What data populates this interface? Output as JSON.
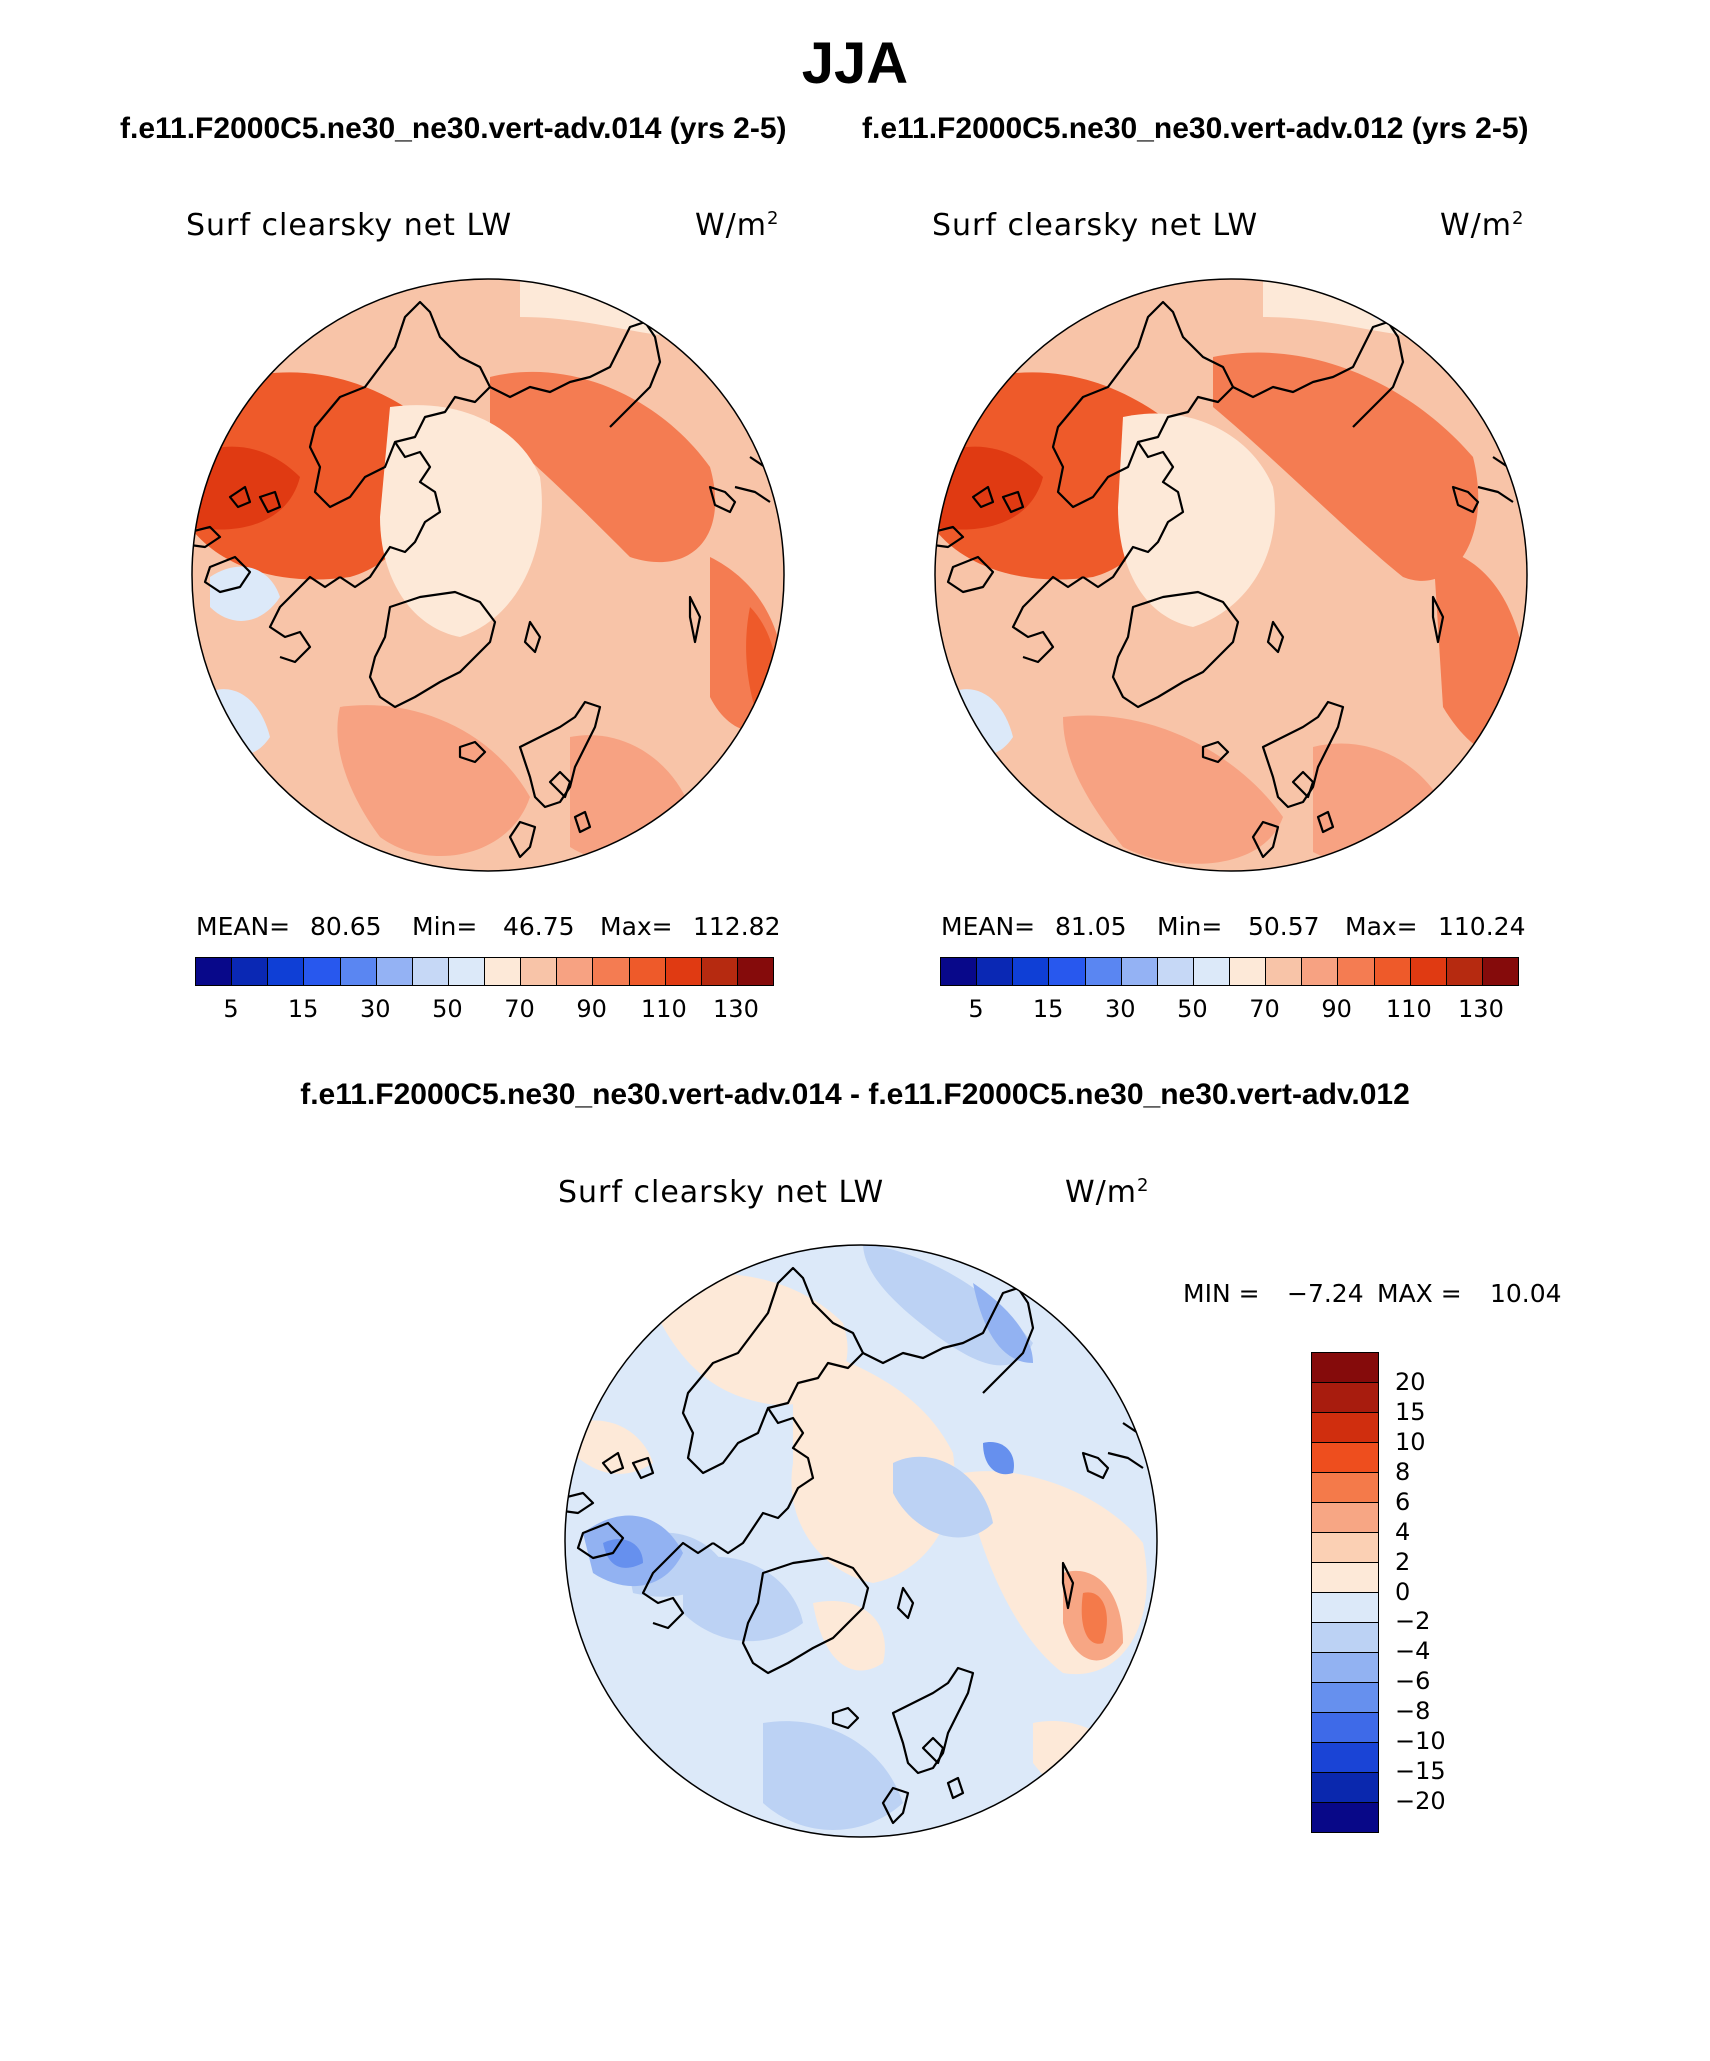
{
  "title": "JJA",
  "case_titles": {
    "left": "f.e11.F2000C5.ne30_ne30.vert-adv.014 (yrs 2-5)",
    "right": "f.e11.F2000C5.ne30_ne30.vert-adv.012 (yrs 2-5)",
    "diff": "f.e11.F2000C5.ne30_ne30.vert-adv.014 - f.e11.F2000C5.ne30_ne30.vert-adv.012"
  },
  "panels": {
    "left": {
      "variable": "Surf clearsky net LW",
      "units": "W/m",
      "units_sup": "2",
      "mean_label": "MEAN=",
      "mean": "80.65",
      "min_label": "Min=",
      "min": "46.75",
      "max_label": "Max=",
      "max": "112.82"
    },
    "right": {
      "variable": "Surf clearsky net LW",
      "units": "W/m",
      "units_sup": "2",
      "mean_label": "MEAN=",
      "mean": "81.05",
      "min_label": "Min=",
      "min": "50.57",
      "max_label": "Max=",
      "max": "110.24"
    },
    "diff": {
      "variable": "Surf clearsky net LW",
      "units": "W/m",
      "units_sup": "2",
      "min_label": "MIN =",
      "min": "−7.24",
      "max_label": "MAX =",
      "max": "10.04"
    }
  },
  "colorbar_main": {
    "colors": [
      "#08088a",
      "#0a28b4",
      "#0f3fd6",
      "#2858ee",
      "#5a86f2",
      "#94b2f4",
      "#c6d8f6",
      "#dce9f9",
      "#fde9d8",
      "#f8c4a8",
      "#f7a282",
      "#f47c52",
      "#ee5a2a",
      "#e03a12",
      "#b62a10",
      "#850b0b"
    ],
    "ticks": [
      "5",
      "15",
      "30",
      "50",
      "70",
      "90",
      "110",
      "130"
    ]
  },
  "colorbar_diff": {
    "colors": [
      "#850b0b",
      "#a81c0e",
      "#d02e0e",
      "#ee4e1e",
      "#f47a4a",
      "#f7a684",
      "#fbd0b4",
      "#fde9d8",
      "#dce9f9",
      "#bcd2f4",
      "#92b2f2",
      "#6690ee",
      "#3e6ae8",
      "#1a44d6",
      "#0a28ae",
      "#080888"
    ],
    "ticks": [
      "20",
      "15",
      "10",
      "8",
      "6",
      "4",
      "2",
      "0",
      "−2",
      "−4",
      "−6",
      "−8",
      "−10",
      "−15",
      "−20"
    ]
  },
  "chart_data": [
    {
      "type": "map",
      "projection": "north polar stereographic",
      "field": "Surf clearsky net LW",
      "case": "f.e11.F2000C5.ne30_ne30.vert-adv.014 (yrs 2-5)",
      "mean": 80.65,
      "min": 46.75,
      "max": 112.82,
      "levels": [
        5,
        10,
        15,
        20,
        30,
        40,
        50,
        60,
        70,
        80,
        90,
        100,
        110,
        120,
        130
      ]
    },
    {
      "type": "map",
      "projection": "north polar stereographic",
      "field": "Surf clearsky net LW",
      "case": "f.e11.F2000C5.ne30_ne30.vert-adv.012 (yrs 2-5)",
      "mean": 81.05,
      "min": 50.57,
      "max": 110.24,
      "levels": [
        5,
        10,
        15,
        20,
        30,
        40,
        50,
        60,
        70,
        80,
        90,
        100,
        110,
        120,
        130
      ]
    },
    {
      "type": "map",
      "projection": "north polar stereographic",
      "field": "Surf clearsky net LW (difference)",
      "min": -7.24,
      "max": 10.04,
      "levels": [
        -20,
        -15,
        -10,
        -8,
        -6,
        -4,
        -2,
        0,
        2,
        4,
        6,
        8,
        10,
        15,
        20
      ]
    }
  ]
}
